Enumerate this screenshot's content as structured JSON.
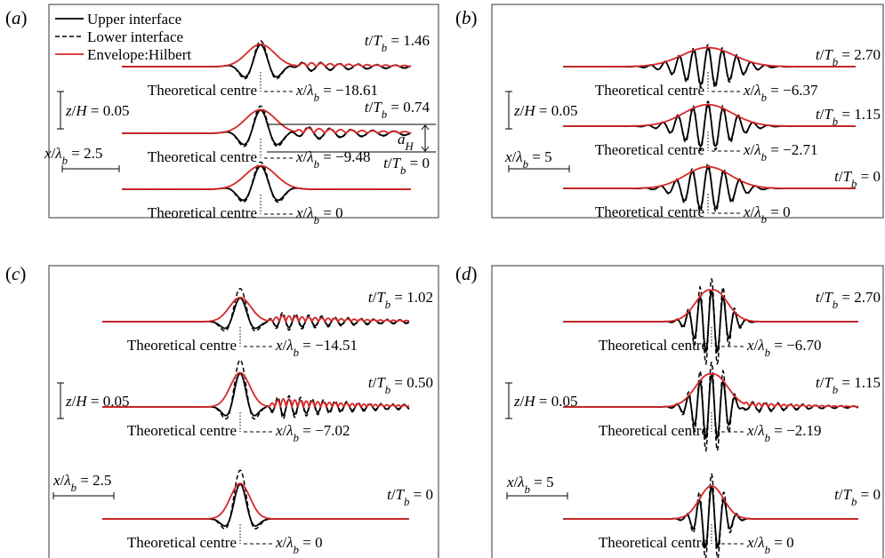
{
  "legend": {
    "upper": "Upper interface",
    "lower": "Lower interface",
    "envelope": "Envelope:Hilbert"
  },
  "colors": {
    "upper": "#000000",
    "lower": "#000000",
    "envelope": "#d62728"
  },
  "common": {
    "theoretical_centre": "Theoretical centre",
    "z_scale": "z/H = 0.05",
    "a_H": "a_H"
  },
  "panels": [
    {
      "label": "a",
      "x_scale": "x/λ_b = 2.5",
      "traces": [
        {
          "t": "1.46",
          "x_centre": "−18.61",
          "kind": "a",
          "amp": 0.95,
          "k": 1.15,
          "sigma": 0.65,
          "tail": 0.22,
          "tail_k": 2.3,
          "skew": 0.0
        },
        {
          "t": "0.74",
          "x_centre": "−9.48",
          "kind": "a",
          "amp": 1.0,
          "k": 1.1,
          "sigma": 0.7,
          "tail": 0.3,
          "tail_k": 2.0,
          "skew": 0.0
        },
        {
          "t": "0",
          "x_centre": "0",
          "kind": "a",
          "amp": 1.0,
          "k": 1.05,
          "sigma": 0.72,
          "tail": 0.0,
          "tail_k": 2.0,
          "skew": 0.0
        }
      ],
      "chart_data": {
        "type": "line",
        "series": [
          {
            "name": "Upper interface"
          },
          {
            "name": "Lower interface"
          },
          {
            "name": "Envelope:Hilbert"
          }
        ],
        "times_t_over_Tb": [
          1.46,
          0.74,
          0
        ],
        "packet_centre_x_over_lambda_b": [
          -18.61,
          -9.48,
          0
        ],
        "scale_bars": {
          "z_over_H": 0.05,
          "x_over_lambda_b": 2.5
        }
      }
    },
    {
      "label": "b",
      "x_scale": "x/λ_b = 5",
      "traces": [
        {
          "t": "2.70",
          "x_centre": "−6.37",
          "kind": "b",
          "amp": 0.75,
          "k": 2.1,
          "sigma": 1.7,
          "tail": 0.0,
          "tail_k": 2.0,
          "skew": 0.0
        },
        {
          "t": "1.15",
          "x_centre": "−2.71",
          "kind": "b",
          "amp": 0.85,
          "k": 2.0,
          "sigma": 1.6,
          "tail": 0.0,
          "tail_k": 2.0,
          "skew": 0.0
        },
        {
          "t": "0",
          "x_centre": "0",
          "kind": "b",
          "amp": 0.85,
          "k": 1.9,
          "sigma": 1.5,
          "tail": 0.0,
          "tail_k": 2.0,
          "skew": 0.0
        }
      ],
      "chart_data": {
        "type": "line",
        "series": [
          {
            "name": "Upper interface"
          },
          {
            "name": "Lower interface"
          },
          {
            "name": "Envelope:Hilbert"
          }
        ],
        "times_t_over_Tb": [
          2.7,
          1.15,
          0
        ],
        "packet_centre_x_over_lambda_b": [
          -6.37,
          -2.71,
          0
        ],
        "scale_bars": {
          "z_over_H": 0.05,
          "x_over_lambda_b": 5
        }
      }
    },
    {
      "label": "c",
      "x_scale": "x/λ_b = 2.5",
      "traces": [
        {
          "t": "1.02",
          "x_centre": "−14.51",
          "kind": "c",
          "amp": 0.95,
          "k": 1.0,
          "sigma": 0.55,
          "tail": 0.32,
          "tail_k": 3.0,
          "skew": 0.0
        },
        {
          "t": "0.50",
          "x_centre": "−7.02",
          "kind": "c",
          "amp": 1.35,
          "k": 1.05,
          "sigma": 0.5,
          "tail": 0.42,
          "tail_k": 3.4,
          "skew": 0.0
        },
        {
          "t": "0",
          "x_centre": "0",
          "kind": "c",
          "amp": 1.4,
          "k": 0.95,
          "sigma": 0.5,
          "tail": 0.0,
          "tail_k": 2.0,
          "skew": 0.0
        }
      ],
      "chart_data": {
        "type": "line",
        "series": [
          {
            "name": "Upper interface"
          },
          {
            "name": "Lower interface"
          },
          {
            "name": "Envelope:Hilbert"
          }
        ],
        "times_t_over_Tb": [
          1.02,
          0.5,
          0
        ],
        "packet_centre_x_over_lambda_b": [
          -14.51,
          -7.02,
          0
        ],
        "scale_bars": {
          "z_over_H": 0.05,
          "x_over_lambda_b": 2.5
        }
      }
    },
    {
      "label": "d",
      "x_scale": "x/λ_b = 5",
      "traces": [
        {
          "t": "2.70",
          "x_centre": "−6.70",
          "kind": "d",
          "amp": 1.25,
          "k": 2.6,
          "sigma": 0.9,
          "tail": 0.0,
          "tail_k": 2.0,
          "skew": 1.0
        },
        {
          "t": "1.15",
          "x_centre": "−2.19",
          "kind": "d",
          "amp": 1.3,
          "k": 2.6,
          "sigma": 0.95,
          "tail": 0.25,
          "tail_k": 2.4,
          "skew": 0.8
        },
        {
          "t": "0",
          "x_centre": "0",
          "kind": "d",
          "amp": 1.3,
          "k": 2.4,
          "sigma": 0.8,
          "tail": 0.0,
          "tail_k": 2.0,
          "skew": 0.0
        }
      ],
      "chart_data": {
        "type": "line",
        "series": [
          {
            "name": "Upper interface"
          },
          {
            "name": "Lower interface"
          },
          {
            "name": "Envelope:Hilbert"
          }
        ],
        "times_t_over_Tb": [
          2.7,
          1.15,
          0
        ],
        "packet_centre_x_over_lambda_b": [
          -6.7,
          -2.19,
          0
        ],
        "scale_bars": {
          "z_over_H": 0.05,
          "x_over_lambda_b": 5
        }
      }
    }
  ]
}
